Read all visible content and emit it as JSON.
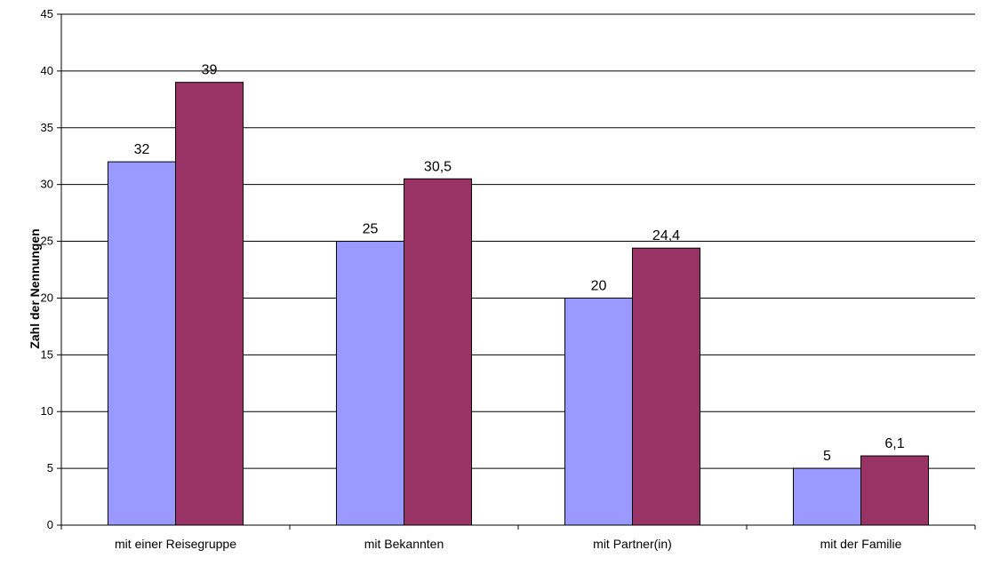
{
  "chart_data": {
    "type": "bar",
    "categories": [
      "mit einer Reisegruppe",
      "mit Bekannten",
      "mit Partner(in)",
      "mit der Familie"
    ],
    "series": [
      {
        "values": [
          32,
          25,
          20,
          5
        ],
        "labels": [
          "32",
          "25",
          "20",
          "5"
        ],
        "color": "#9999ff"
      },
      {
        "values": [
          39,
          30.5,
          24.4,
          6.1
        ],
        "labels": [
          "39",
          "30,5",
          "24,4",
          "6,1"
        ],
        "color": "#993366"
      }
    ],
    "ylabel": "Zahl der Nennungen",
    "ylim": [
      0,
      45
    ],
    "yticks": [
      "0",
      "5",
      "10",
      "15",
      "20",
      "25",
      "30",
      "35",
      "40",
      "45"
    ],
    "grid": true,
    "legend": "none"
  }
}
